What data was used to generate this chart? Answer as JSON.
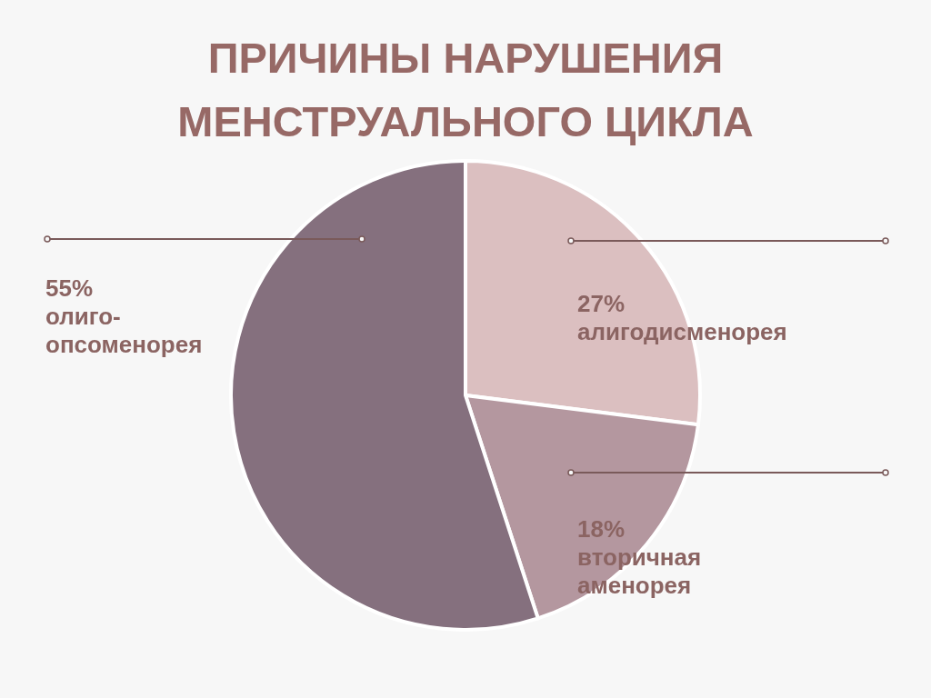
{
  "chart_data": {
    "type": "pie",
    "title": [
      "ПРИЧИНЫ НАРУШЕНИЯ",
      "МЕНСТРУАЛЬНОГО ЦИКЛА"
    ],
    "categories": [
      "алигодисменорея",
      "вторичная аменорея",
      "олиго-опсоменорея"
    ],
    "values": [
      27,
      18,
      55
    ],
    "colors": [
      "#dbbfc0",
      "#b4979f",
      "#85707e"
    ],
    "value_labels": [
      "27%",
      "18%",
      "55%"
    ],
    "legend": false
  }
}
